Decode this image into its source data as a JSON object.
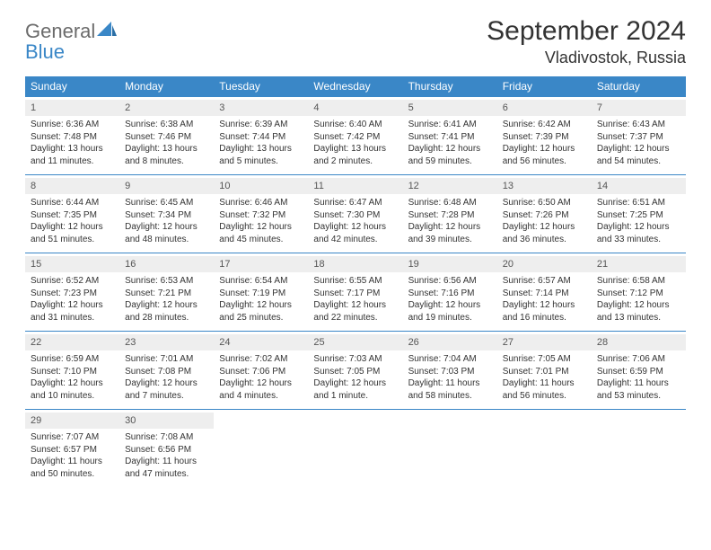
{
  "logo": {
    "general": "General",
    "blue": "Blue"
  },
  "title": "September 2024",
  "location": "Vladivostok, Russia",
  "colors": {
    "header_bg": "#3a87c7",
    "header_text": "#ffffff",
    "daynum_bg": "#eeeeee",
    "border": "#3a87c7",
    "text": "#333333",
    "logo_gray": "#6b6b6b",
    "logo_blue": "#3a87c7"
  },
  "layout": {
    "columns": 7,
    "rows": 5,
    "cell_font_size_pt": 10,
    "header_font_size_pt": 12,
    "title_font_size_pt": 30
  },
  "dow": [
    "Sunday",
    "Monday",
    "Tuesday",
    "Wednesday",
    "Thursday",
    "Friday",
    "Saturday"
  ],
  "weeks": [
    [
      {
        "n": "1",
        "sr": "Sunrise: 6:36 AM",
        "ss": "Sunset: 7:48 PM",
        "dl": "Daylight: 13 hours and 11 minutes."
      },
      {
        "n": "2",
        "sr": "Sunrise: 6:38 AM",
        "ss": "Sunset: 7:46 PM",
        "dl": "Daylight: 13 hours and 8 minutes."
      },
      {
        "n": "3",
        "sr": "Sunrise: 6:39 AM",
        "ss": "Sunset: 7:44 PM",
        "dl": "Daylight: 13 hours and 5 minutes."
      },
      {
        "n": "4",
        "sr": "Sunrise: 6:40 AM",
        "ss": "Sunset: 7:42 PM",
        "dl": "Daylight: 13 hours and 2 minutes."
      },
      {
        "n": "5",
        "sr": "Sunrise: 6:41 AM",
        "ss": "Sunset: 7:41 PM",
        "dl": "Daylight: 12 hours and 59 minutes."
      },
      {
        "n": "6",
        "sr": "Sunrise: 6:42 AM",
        "ss": "Sunset: 7:39 PM",
        "dl": "Daylight: 12 hours and 56 minutes."
      },
      {
        "n": "7",
        "sr": "Sunrise: 6:43 AM",
        "ss": "Sunset: 7:37 PM",
        "dl": "Daylight: 12 hours and 54 minutes."
      }
    ],
    [
      {
        "n": "8",
        "sr": "Sunrise: 6:44 AM",
        "ss": "Sunset: 7:35 PM",
        "dl": "Daylight: 12 hours and 51 minutes."
      },
      {
        "n": "9",
        "sr": "Sunrise: 6:45 AM",
        "ss": "Sunset: 7:34 PM",
        "dl": "Daylight: 12 hours and 48 minutes."
      },
      {
        "n": "10",
        "sr": "Sunrise: 6:46 AM",
        "ss": "Sunset: 7:32 PM",
        "dl": "Daylight: 12 hours and 45 minutes."
      },
      {
        "n": "11",
        "sr": "Sunrise: 6:47 AM",
        "ss": "Sunset: 7:30 PM",
        "dl": "Daylight: 12 hours and 42 minutes."
      },
      {
        "n": "12",
        "sr": "Sunrise: 6:48 AM",
        "ss": "Sunset: 7:28 PM",
        "dl": "Daylight: 12 hours and 39 minutes."
      },
      {
        "n": "13",
        "sr": "Sunrise: 6:50 AM",
        "ss": "Sunset: 7:26 PM",
        "dl": "Daylight: 12 hours and 36 minutes."
      },
      {
        "n": "14",
        "sr": "Sunrise: 6:51 AM",
        "ss": "Sunset: 7:25 PM",
        "dl": "Daylight: 12 hours and 33 minutes."
      }
    ],
    [
      {
        "n": "15",
        "sr": "Sunrise: 6:52 AM",
        "ss": "Sunset: 7:23 PM",
        "dl": "Daylight: 12 hours and 31 minutes."
      },
      {
        "n": "16",
        "sr": "Sunrise: 6:53 AM",
        "ss": "Sunset: 7:21 PM",
        "dl": "Daylight: 12 hours and 28 minutes."
      },
      {
        "n": "17",
        "sr": "Sunrise: 6:54 AM",
        "ss": "Sunset: 7:19 PM",
        "dl": "Daylight: 12 hours and 25 minutes."
      },
      {
        "n": "18",
        "sr": "Sunrise: 6:55 AM",
        "ss": "Sunset: 7:17 PM",
        "dl": "Daylight: 12 hours and 22 minutes."
      },
      {
        "n": "19",
        "sr": "Sunrise: 6:56 AM",
        "ss": "Sunset: 7:16 PM",
        "dl": "Daylight: 12 hours and 19 minutes."
      },
      {
        "n": "20",
        "sr": "Sunrise: 6:57 AM",
        "ss": "Sunset: 7:14 PM",
        "dl": "Daylight: 12 hours and 16 minutes."
      },
      {
        "n": "21",
        "sr": "Sunrise: 6:58 AM",
        "ss": "Sunset: 7:12 PM",
        "dl": "Daylight: 12 hours and 13 minutes."
      }
    ],
    [
      {
        "n": "22",
        "sr": "Sunrise: 6:59 AM",
        "ss": "Sunset: 7:10 PM",
        "dl": "Daylight: 12 hours and 10 minutes."
      },
      {
        "n": "23",
        "sr": "Sunrise: 7:01 AM",
        "ss": "Sunset: 7:08 PM",
        "dl": "Daylight: 12 hours and 7 minutes."
      },
      {
        "n": "24",
        "sr": "Sunrise: 7:02 AM",
        "ss": "Sunset: 7:06 PM",
        "dl": "Daylight: 12 hours and 4 minutes."
      },
      {
        "n": "25",
        "sr": "Sunrise: 7:03 AM",
        "ss": "Sunset: 7:05 PM",
        "dl": "Daylight: 12 hours and 1 minute."
      },
      {
        "n": "26",
        "sr": "Sunrise: 7:04 AM",
        "ss": "Sunset: 7:03 PM",
        "dl": "Daylight: 11 hours and 58 minutes."
      },
      {
        "n": "27",
        "sr": "Sunrise: 7:05 AM",
        "ss": "Sunset: 7:01 PM",
        "dl": "Daylight: 11 hours and 56 minutes."
      },
      {
        "n": "28",
        "sr": "Sunrise: 7:06 AM",
        "ss": "Sunset: 6:59 PM",
        "dl": "Daylight: 11 hours and 53 minutes."
      }
    ],
    [
      {
        "n": "29",
        "sr": "Sunrise: 7:07 AM",
        "ss": "Sunset: 6:57 PM",
        "dl": "Daylight: 11 hours and 50 minutes."
      },
      {
        "n": "30",
        "sr": "Sunrise: 7:08 AM",
        "ss": "Sunset: 6:56 PM",
        "dl": "Daylight: 11 hours and 47 minutes."
      },
      null,
      null,
      null,
      null,
      null
    ]
  ]
}
